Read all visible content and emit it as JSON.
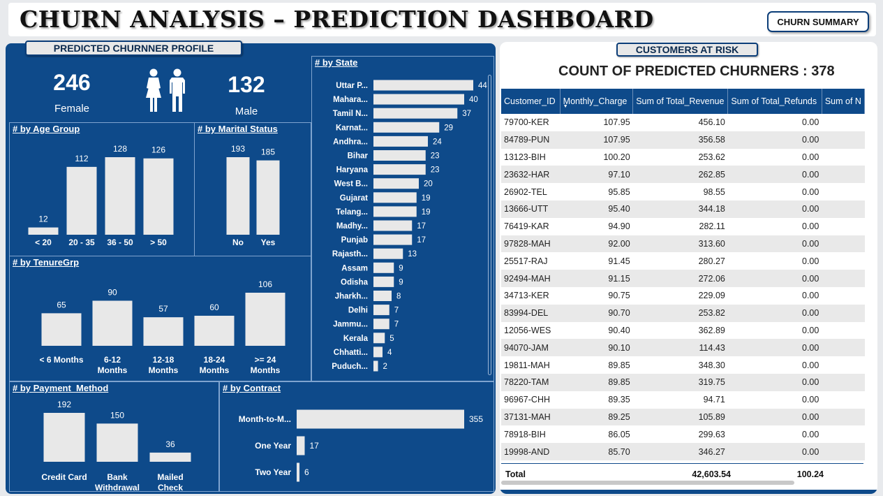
{
  "header": {
    "title": "CHURN ANALYSIS – PREDICTION DASHBOARD",
    "summary_button": "CHURN SUMMARY"
  },
  "profile": {
    "panel_title": "PREDICTED CHURNNER PROFILE",
    "female_count": "246",
    "female_label": "Female",
    "male_count": "132",
    "male_label": "Male",
    "icon": "female-male-icon"
  },
  "colors": {
    "panel_blue": "#0e4a8a",
    "bar_fill": "#e8e8e8",
    "table_header": "#0e4a8a"
  },
  "charts": {
    "age_group": {
      "title": "# by Age Group",
      "type": "bar",
      "categories": [
        "< 20",
        "20 - 35",
        "36 - 50",
        "> 50"
      ],
      "values": [
        12,
        112,
        128,
        126
      ]
    },
    "marital_status": {
      "title": "# by Marital Status",
      "type": "bar",
      "categories": [
        "No",
        "Yes"
      ],
      "values": [
        193,
        185
      ]
    },
    "tenure": {
      "title": "# by TenureGrp",
      "type": "bar",
      "categories": [
        [
          "< 6 Months"
        ],
        [
          "6-12",
          "Months"
        ],
        [
          "12-18",
          "Months"
        ],
        [
          "18-24",
          "Months"
        ],
        [
          ">= 24",
          "Months"
        ]
      ],
      "values": [
        65,
        90,
        57,
        60,
        106
      ]
    },
    "payment": {
      "title": "# by Payment_Method",
      "type": "bar",
      "categories": [
        [
          "Credit Card"
        ],
        [
          "Bank",
          "Withdrawal"
        ],
        [
          "Mailed",
          "Check"
        ]
      ],
      "values": [
        192,
        150,
        36
      ]
    },
    "contract": {
      "title": "# by Contract",
      "type": "bar",
      "categories": [
        "Month-to-M...",
        "One Year",
        "Two Year"
      ],
      "values": [
        355,
        17,
        6
      ]
    },
    "state": {
      "title": "# by State",
      "type": "bar",
      "categories": [
        "Uttar P...",
        "Mahara...",
        "Tamil N...",
        "Karnat...",
        "Andhra...",
        "Bihar",
        "Haryana",
        "West B...",
        "Gujarat",
        "Telang...",
        "Madhy...",
        "Punjab",
        "Rajasth...",
        "Assam",
        "Odisha",
        "Jharkh...",
        "Delhi",
        "Jammu...",
        "Kerala",
        "Chhatti...",
        "Puduch..."
      ],
      "values": [
        44,
        40,
        37,
        29,
        24,
        23,
        23,
        20,
        19,
        19,
        17,
        17,
        13,
        9,
        9,
        8,
        7,
        7,
        5,
        4,
        2
      ]
    }
  },
  "risk": {
    "panel_title": "CUSTOMERS AT RISK",
    "count_title": "COUNT OF PREDICTED CHURNERS : 378",
    "columns": [
      "Customer_ID",
      "Monthly_Charge",
      "Sum of Total_Revenue",
      "Sum of Total_Refunds",
      "Sum of N"
    ],
    "rows": [
      [
        "79700-KER",
        "107.95",
        "456.10",
        "0.00"
      ],
      [
        "84789-PUN",
        "107.95",
        "356.58",
        "0.00"
      ],
      [
        "13123-BIH",
        "100.20",
        "253.62",
        "0.00"
      ],
      [
        "23632-HAR",
        "97.10",
        "262.85",
        "0.00"
      ],
      [
        "26902-TEL",
        "95.85",
        "98.55",
        "0.00"
      ],
      [
        "13666-UTT",
        "95.40",
        "344.18",
        "0.00"
      ],
      [
        "76419-KAR",
        "94.90",
        "282.11",
        "0.00"
      ],
      [
        "97828-MAH",
        "92.00",
        "313.60",
        "0.00"
      ],
      [
        "25517-RAJ",
        "91.45",
        "280.27",
        "0.00"
      ],
      [
        "92494-MAH",
        "91.15",
        "272.06",
        "0.00"
      ],
      [
        "34713-KER",
        "90.75",
        "229.09",
        "0.00"
      ],
      [
        "83994-DEL",
        "90.70",
        "253.82",
        "0.00"
      ],
      [
        "12056-WES",
        "90.40",
        "362.89",
        "0.00"
      ],
      [
        "94070-JAM",
        "90.10",
        "114.43",
        "0.00"
      ],
      [
        "19811-MAH",
        "89.85",
        "348.30",
        "0.00"
      ],
      [
        "78220-TAM",
        "89.85",
        "319.75",
        "0.00"
      ],
      [
        "96967-CHH",
        "89.35",
        "94.71",
        "0.00"
      ],
      [
        "37131-MAH",
        "89.25",
        "105.89",
        "0.00"
      ],
      [
        "78918-BIH",
        "86.05",
        "299.63",
        "0.00"
      ],
      [
        "19998-AND",
        "85.70",
        "346.27",
        "0.00"
      ]
    ],
    "total_label": "Total",
    "total_revenue": "42,603.54",
    "total_refunds": "100.24"
  }
}
